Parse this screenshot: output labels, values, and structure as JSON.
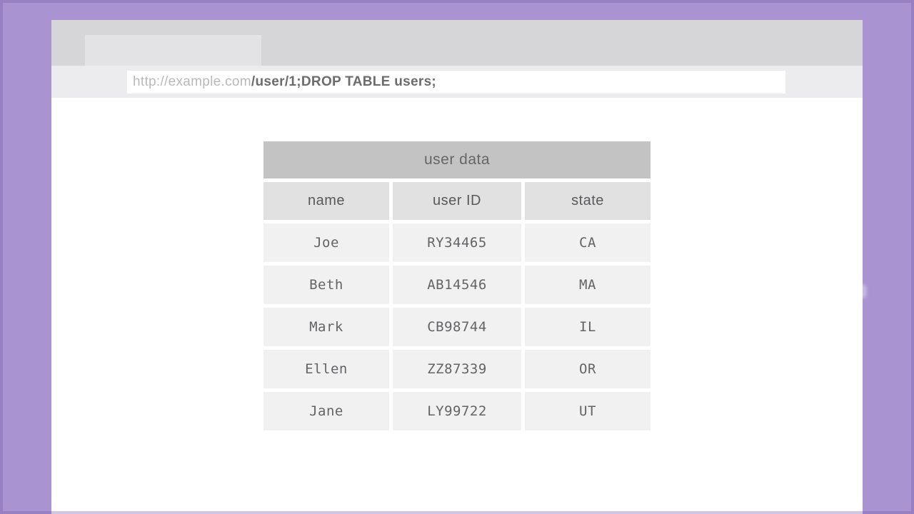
{
  "frame": {
    "background_color": "#a993d0",
    "edge_color": "#8f77b8"
  },
  "browser": {
    "tab_bar_color": "#d6d6d8",
    "tab_color": "#e3e3e5",
    "address_strip_color": "#ececee",
    "address_bar": {
      "url_base": "http://example.com",
      "url_payload": "/user/1;DROP TABLE users;"
    }
  },
  "table": {
    "title": "user data",
    "title_color": "#c3c3c4",
    "header_color": "#e1e1e2",
    "cell_color": "#f1f1f2",
    "columns": [
      "name",
      "user ID",
      "state"
    ],
    "rows": [
      [
        "Joe",
        "RY34465",
        "CA"
      ],
      [
        "Beth",
        "AB14546",
        "MA"
      ],
      [
        "Mark",
        "CB98744",
        "IL"
      ],
      [
        "Ellen",
        "ZZ87339",
        "OR"
      ],
      [
        "Jane",
        "LY99722",
        "UT"
      ]
    ]
  }
}
